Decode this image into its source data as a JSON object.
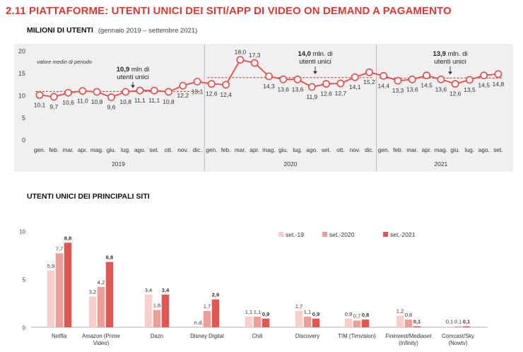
{
  "header": {
    "title": "2.11 PIATTAFORME: UTENTI UNICI DEI SITI/APP DI VIDEO ON DEMAND A PAGAMENTO",
    "subtitle": "MILIONI DI UTENTI",
    "subtitle_note": "(gennaio 2019 – settembre 2021)"
  },
  "section2": {
    "title": "UTENTI UNICI DEI PRINCIPALI SITI"
  },
  "colors": {
    "accent": "#e84a4a",
    "line": "#e84a4a",
    "bar_2019": "#f7d0cc",
    "bar_2020": "#ee9e98",
    "bar_2021": "#e05852",
    "panel_bg": "#f0f0f0"
  },
  "chart_data": [
    {
      "type": "line",
      "ylim": [
        0,
        20
      ],
      "yticks": [
        0,
        5,
        10,
        15,
        20
      ],
      "x": [
        "gen.",
        "feb.",
        "mar.",
        "apr.",
        "mag.",
        "giu.",
        "lug.",
        "ago.",
        "set.",
        "ott.",
        "nov.",
        "dic.",
        "gen.",
        "feb.",
        "mar.",
        "apr.",
        "mag.",
        "giu.",
        "lug.",
        "ago.",
        "set.",
        "ott.",
        "nov.",
        "dic.",
        "gen.",
        "feb.",
        "mar.",
        "apr.",
        "mag.",
        "giu.",
        "lug.",
        "ago.",
        "set."
      ],
      "values": [
        10.1,
        9.7,
        10.6,
        11.0,
        10.8,
        9.6,
        10.8,
        11.1,
        11.1,
        10.8,
        12.2,
        13.1,
        12.6,
        12.4,
        18.0,
        17.3,
        14.3,
        13.6,
        13.6,
        11.9,
        12.6,
        12.7,
        14.1,
        15.2,
        14.4,
        13.3,
        13.6,
        14.5,
        13.6,
        12.6,
        13.5,
        14.5,
        14.8
      ],
      "value_labels": [
        "10,1",
        "9,7",
        "10,6",
        "11,0",
        "10,8",
        "9,6",
        "10,8",
        "11,1",
        "11,1",
        "10,8",
        "12,2",
        "13,1",
        "12,6",
        "12,4",
        "18,0",
        "17,3",
        "14,3",
        "13,6",
        "13,6",
        "11,9",
        "12,6",
        "12,7",
        "14,1",
        "15,2",
        "14,4",
        "13,3",
        "13,6",
        "14,5",
        "13,6",
        "12,6",
        "13,5",
        "14,5",
        "14,8"
      ],
      "years": [
        {
          "label": "2019",
          "start": 0,
          "end": 11,
          "avg": 10.9,
          "avg_text": "10,9",
          "avg_suffix": "mln di",
          "avg_line2": "utenti unici"
        },
        {
          "label": "2020",
          "start": 12,
          "end": 23,
          "avg": 14.0,
          "avg_text": "14,0",
          "avg_suffix": "mln. di",
          "avg_line2": "utenti unici"
        },
        {
          "label": "2021",
          "start": 24,
          "end": 32,
          "avg": 13.9,
          "avg_text": "13,9",
          "avg_suffix": "mln. di",
          "avg_line2": "utenti unici"
        }
      ],
      "annotation": "valore medio di periodo",
      "grid": false
    },
    {
      "type": "bar",
      "ylim": [
        0,
        10
      ],
      "yticks": [
        0,
        5,
        10
      ],
      "categories": [
        "Netflix",
        "Amazon (Prime Video)",
        "Dazn",
        "Disney Digital",
        "Chili",
        "Discovery",
        "TIM (Timvision)",
        "Fininvest/Mediaset (Infinity)",
        "Comcast/Sky (Nowtv)"
      ],
      "category_lines": [
        [
          "Netflix"
        ],
        [
          "Amazon (Prime",
          "Video)"
        ],
        [
          "Dazn"
        ],
        [
          "Disney Digital"
        ],
        [
          "Chili"
        ],
        [
          "Discovery"
        ],
        [
          "TIM (Timvision)"
        ],
        [
          "Fininvest/Mediaset",
          "(Infinity)"
        ],
        [
          "Comcast/Sky",
          "(Nowtv)"
        ]
      ],
      "series": [
        {
          "name": "set.-19",
          "values": [
            5.9,
            3.2,
            3.4,
            null,
            1.1,
            1.7,
            0.9,
            1.2,
            0.1
          ],
          "labels": [
            "5,9",
            "3,2",
            "3,4",
            "n.d.",
            "1,1",
            "1,7",
            "0,9",
            "1,2",
            "0,1"
          ]
        },
        {
          "name": "set.-2020",
          "values": [
            7.7,
            4.2,
            1.8,
            1.7,
            1.1,
            1.1,
            0.7,
            0.8,
            0.1
          ],
          "labels": [
            "7,7",
            "4,2",
            "1,8",
            "1,7",
            "1,1",
            "1,1",
            "0,7",
            "0,8",
            "0,1"
          ]
        },
        {
          "name": "set.-2021",
          "values": [
            8.8,
            6.8,
            3.4,
            2.9,
            0.9,
            0.9,
            0.8,
            0.1,
            0.1
          ],
          "labels": [
            "8,8",
            "6,8",
            "3,4",
            "2,9",
            "0,9",
            "0,9",
            "0,8",
            "0,1",
            "0,1"
          ]
        }
      ],
      "legend_position": "top-right"
    }
  ]
}
